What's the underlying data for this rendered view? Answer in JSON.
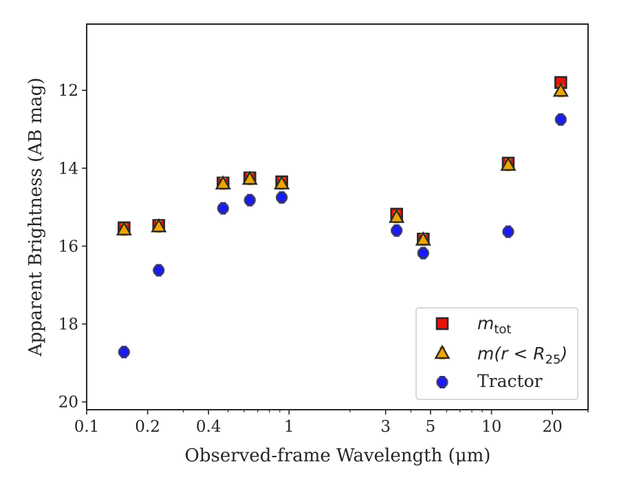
{
  "chart_data": {
    "type": "scatter",
    "title": "",
    "xlabel": "Observed-frame Wavelength (μm)",
    "ylabel": "Apparent Brightness (AB mag)",
    "xscale": "log",
    "yaxis_inverted": true,
    "xlim": [
      0.1,
      30
    ],
    "ylim": [
      20.2,
      10.3
    ],
    "x_ticks": [
      0.1,
      0.2,
      0.4,
      1,
      3,
      5,
      10,
      20
    ],
    "x_tick_labels": [
      "0.1",
      "0.2",
      "0.4",
      "1",
      "3",
      "5",
      "10",
      "20"
    ],
    "y_ticks": [
      12,
      14,
      16,
      18,
      20
    ],
    "y_tick_labels": [
      "12",
      "14",
      "16",
      "18",
      "20"
    ],
    "grid": false,
    "legend_position": "lower-right",
    "x": [
      0.153,
      0.227,
      0.472,
      0.64,
      0.92,
      3.4,
      4.6,
      12.1,
      22.0
    ],
    "series": [
      {
        "name": "m_tot",
        "legend_label": "m",
        "legend_subscript": "tot",
        "marker": "square",
        "color": "#e8120c",
        "edge_color": "#2b2b2b",
        "error_color": "#e8120c",
        "values": [
          15.53,
          15.47,
          14.38,
          14.25,
          14.35,
          15.18,
          15.82,
          13.87,
          11.8
        ]
      },
      {
        "name": "m(r<R25)",
        "legend_label": "m(r < R",
        "legend_subscript": "25",
        "legend_suffix": ")",
        "marker": "triangle",
        "color": "#f0a500",
        "edge_color": "#2b2b2b",
        "error_color": "#f0a500",
        "values": [
          15.58,
          15.5,
          14.4,
          14.28,
          14.4,
          15.26,
          15.84,
          13.92,
          12.02
        ]
      },
      {
        "name": "Tractor",
        "legend_label": "Tractor",
        "marker": "circle",
        "color": "#1a1aff",
        "edge_color": "#3a3a3a",
        "error_color": "#1a1aff",
        "values": [
          18.72,
          16.62,
          15.03,
          14.82,
          14.75,
          15.6,
          16.18,
          15.63,
          12.75
        ]
      }
    ]
  }
}
